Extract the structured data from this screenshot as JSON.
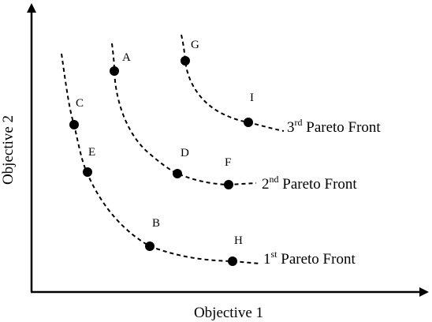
{
  "axes": {
    "x_label": "Objective 1",
    "y_label": "Objective 2"
  },
  "fronts": [
    {
      "id": "front-1",
      "label_prefix": "1",
      "label_sup": "st",
      "label_rest": " Pareto Front"
    },
    {
      "id": "front-2",
      "label_prefix": "2",
      "label_sup": "nd",
      "label_rest": " Pareto Front"
    },
    {
      "id": "front-3",
      "label_prefix": "3",
      "label_sup": "rd",
      "label_rest": " Pareto Front"
    }
  ],
  "points": {
    "A": "A",
    "B": "B",
    "C": "C",
    "D": "D",
    "E": "E",
    "F": "F",
    "G": "G",
    "H": "H",
    "I": "I"
  },
  "colors": {
    "ink": "#000000",
    "background": "#ffffff"
  }
}
